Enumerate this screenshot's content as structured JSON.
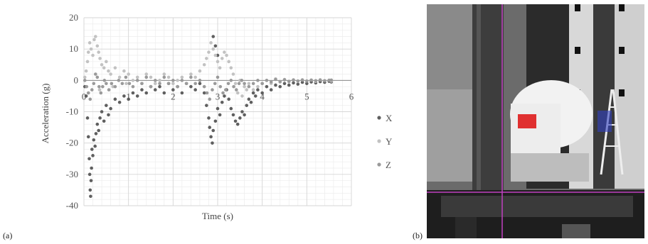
{
  "panels": {
    "a_label": "(a)",
    "b_label": "(b)"
  },
  "chart_data": {
    "type": "scatter",
    "title": "",
    "xlabel": "Time (s)",
    "ylabel": "Acceleration (g)",
    "xlim": [
      0,
      6
    ],
    "ylim": [
      -40,
      20
    ],
    "xticks": [
      0,
      1,
      2,
      3,
      4,
      5,
      6
    ],
    "yticks": [
      -40,
      -30,
      -20,
      -10,
      0,
      10,
      20
    ],
    "grid": true,
    "legend": "right",
    "series": [
      {
        "name": "X",
        "color": "#5f5f5f",
        "points": [
          [
            0.02,
            -2
          ],
          [
            0.05,
            -5
          ],
          [
            0.08,
            -12
          ],
          [
            0.1,
            -18
          ],
          [
            0.12,
            -25
          ],
          [
            0.13,
            -30
          ],
          [
            0.14,
            -35
          ],
          [
            0.15,
            -37
          ],
          [
            0.16,
            -32
          ],
          [
            0.17,
            -28
          ],
          [
            0.18,
            -22
          ],
          [
            0.2,
            -24
          ],
          [
            0.22,
            -19
          ],
          [
            0.25,
            -21
          ],
          [
            0.27,
            -17
          ],
          [
            0.3,
            -14
          ],
          [
            0.33,
            -16
          ],
          [
            0.36,
            -12
          ],
          [
            0.4,
            -10
          ],
          [
            0.45,
            -13
          ],
          [
            0.5,
            -8
          ],
          [
            0.55,
            -11
          ],
          [
            0.6,
            -9
          ],
          [
            0.7,
            -6
          ],
          [
            0.8,
            -7
          ],
          [
            0.9,
            -5
          ],
          [
            1.0,
            -6
          ],
          [
            1.1,
            -4
          ],
          [
            1.2,
            -5
          ],
          [
            1.3,
            -3
          ],
          [
            1.4,
            -4
          ],
          [
            1.5,
            -2
          ],
          [
            1.6,
            -3
          ],
          [
            1.7,
            -2
          ],
          [
            1.8,
            -4
          ],
          [
            1.9,
            -1
          ],
          [
            2.0,
            -3
          ],
          [
            2.1,
            -2
          ],
          [
            2.2,
            -4
          ],
          [
            2.3,
            -1
          ],
          [
            2.4,
            -2
          ],
          [
            2.5,
            -3
          ],
          [
            2.6,
            -1
          ],
          [
            2.7,
            -4
          ],
          [
            2.75,
            -8
          ],
          [
            2.8,
            -12
          ],
          [
            2.82,
            -15
          ],
          [
            2.85,
            -18
          ],
          [
            2.88,
            -20
          ],
          [
            2.9,
            -16
          ],
          [
            2.95,
            -13
          ],
          [
            3.0,
            -9
          ],
          [
            3.05,
            -11
          ],
          [
            3.1,
            -7
          ],
          [
            3.15,
            -5
          ],
          [
            3.2,
            -3
          ],
          [
            3.25,
            -6
          ],
          [
            3.3,
            -9
          ],
          [
            3.35,
            -11
          ],
          [
            3.4,
            -13
          ],
          [
            3.45,
            -14
          ],
          [
            3.5,
            -12
          ],
          [
            3.55,
            -10
          ],
          [
            3.6,
            -11
          ],
          [
            3.65,
            -8
          ],
          [
            3.7,
            -6
          ],
          [
            3.75,
            -7
          ],
          [
            3.8,
            -4
          ],
          [
            3.85,
            -5
          ],
          [
            3.9,
            -3
          ],
          [
            4.0,
            -4
          ],
          [
            4.1,
            -2
          ],
          [
            4.2,
            -3
          ],
          [
            4.3,
            -1.5
          ],
          [
            4.4,
            -2
          ],
          [
            4.5,
            -1
          ],
          [
            4.6,
            -1.5
          ],
          [
            4.7,
            -0.8
          ],
          [
            4.8,
            -1.2
          ],
          [
            4.9,
            -0.6
          ],
          [
            5.0,
            -1
          ],
          [
            5.1,
            -0.5
          ],
          [
            5.2,
            -0.8
          ],
          [
            5.3,
            -0.4
          ],
          [
            5.4,
            -0.6
          ],
          [
            5.5,
            -0.3
          ],
          [
            5.55,
            -0.5
          ],
          [
            2.9,
            14
          ],
          [
            2.95,
            11
          ],
          [
            3.0,
            8
          ]
        ]
      },
      {
        "name": "Y",
        "color": "#c2c2c2",
        "points": [
          [
            0.02,
            1
          ],
          [
            0.05,
            3
          ],
          [
            0.08,
            6
          ],
          [
            0.1,
            9
          ],
          [
            0.13,
            12
          ],
          [
            0.16,
            10
          ],
          [
            0.2,
            8
          ],
          [
            0.23,
            13
          ],
          [
            0.26,
            14
          ],
          [
            0.3,
            11
          ],
          [
            0.33,
            9
          ],
          [
            0.36,
            7
          ],
          [
            0.4,
            5
          ],
          [
            0.45,
            4
          ],
          [
            0.5,
            6
          ],
          [
            0.55,
            3
          ],
          [
            0.6,
            2
          ],
          [
            0.7,
            4
          ],
          [
            0.8,
            1
          ],
          [
            0.9,
            3
          ],
          [
            1.0,
            2
          ],
          [
            1.1,
            0
          ],
          [
            1.2,
            1
          ],
          [
            1.3,
            -1
          ],
          [
            1.4,
            2
          ],
          [
            1.5,
            1
          ],
          [
            1.6,
            -1
          ],
          [
            1.7,
            0
          ],
          [
            1.8,
            2
          ],
          [
            1.9,
            1
          ],
          [
            2.0,
            -1
          ],
          [
            2.1,
            0
          ],
          [
            2.2,
            1
          ],
          [
            2.3,
            -1
          ],
          [
            2.4,
            2
          ],
          [
            2.5,
            1
          ],
          [
            2.6,
            3
          ],
          [
            2.7,
            5
          ],
          [
            2.75,
            7
          ],
          [
            2.8,
            9
          ],
          [
            2.85,
            12
          ],
          [
            2.9,
            10
          ],
          [
            2.95,
            8
          ],
          [
            3.0,
            6
          ],
          [
            3.05,
            4
          ],
          [
            3.1,
            7
          ],
          [
            3.15,
            9
          ],
          [
            3.2,
            8
          ],
          [
            3.25,
            6
          ],
          [
            3.3,
            4
          ],
          [
            3.35,
            2
          ],
          [
            3.4,
            -1
          ],
          [
            3.5,
            0
          ],
          [
            3.6,
            -2
          ],
          [
            3.7,
            -1
          ],
          [
            3.8,
            -3
          ],
          [
            3.9,
            -2
          ],
          [
            4.0,
            -1
          ],
          [
            4.1,
            0
          ],
          [
            4.2,
            -1
          ],
          [
            4.3,
            0.5
          ],
          [
            4.4,
            -0.5
          ],
          [
            4.5,
            0.3
          ],
          [
            4.6,
            -0.4
          ],
          [
            4.7,
            0.2
          ],
          [
            4.8,
            -0.3
          ],
          [
            4.9,
            0.2
          ],
          [
            5.0,
            -0.2
          ],
          [
            5.1,
            0.1
          ],
          [
            5.2,
            -0.3
          ],
          [
            5.3,
            0.2
          ],
          [
            5.4,
            -0.1
          ],
          [
            5.5,
            0.1
          ],
          [
            5.55,
            -0.2
          ],
          [
            3.45,
            -4
          ],
          [
            3.55,
            -5
          ],
          [
            3.65,
            -3
          ],
          [
            0.35,
            -3
          ],
          [
            0.65,
            -2
          ],
          [
            0.95,
            -1
          ]
        ]
      },
      {
        "name": "Z",
        "color": "#9a9a9a",
        "points": [
          [
            0.02,
            0
          ],
          [
            0.06,
            -2
          ],
          [
            0.1,
            -4
          ],
          [
            0.14,
            -6
          ],
          [
            0.18,
            -3
          ],
          [
            0.22,
            -1
          ],
          [
            0.26,
            2
          ],
          [
            0.3,
            1
          ],
          [
            0.34,
            -2
          ],
          [
            0.38,
            -4
          ],
          [
            0.42,
            -2
          ],
          [
            0.46,
            0
          ],
          [
            0.5,
            -1
          ],
          [
            0.56,
            -3
          ],
          [
            0.62,
            -1
          ],
          [
            0.7,
            -2
          ],
          [
            0.78,
            0
          ],
          [
            0.86,
            -1
          ],
          [
            0.94,
            1
          ],
          [
            1.02,
            -1
          ],
          [
            1.1,
            -2
          ],
          [
            1.2,
            0
          ],
          [
            1.3,
            -1
          ],
          [
            1.4,
            1
          ],
          [
            1.5,
            -2
          ],
          [
            1.6,
            0
          ],
          [
            1.7,
            -1
          ],
          [
            1.8,
            1
          ],
          [
            1.9,
            -1
          ],
          [
            2.0,
            0
          ],
          [
            2.1,
            -2
          ],
          [
            2.2,
            0
          ],
          [
            2.3,
            -1
          ],
          [
            2.4,
            1
          ],
          [
            2.5,
            -1
          ],
          [
            2.6,
            0
          ],
          [
            2.7,
            -2
          ],
          [
            2.76,
            -4
          ],
          [
            2.82,
            -6
          ],
          [
            2.88,
            -3
          ],
          [
            2.94,
            -1
          ],
          [
            3.0,
            1
          ],
          [
            3.06,
            -2
          ],
          [
            3.12,
            -4
          ],
          [
            3.18,
            -3
          ],
          [
            3.24,
            -1
          ],
          [
            3.3,
            0
          ],
          [
            3.36,
            -2
          ],
          [
            3.42,
            -3
          ],
          [
            3.48,
            -1
          ],
          [
            3.54,
            0
          ],
          [
            3.6,
            -1
          ],
          [
            3.7,
            -2
          ],
          [
            3.8,
            -1
          ],
          [
            3.9,
            0
          ],
          [
            4.0,
            -1
          ],
          [
            4.1,
            0
          ],
          [
            4.2,
            -0.5
          ],
          [
            4.3,
            0.3
          ],
          [
            4.4,
            -0.4
          ],
          [
            4.5,
            0.2
          ],
          [
            4.6,
            -0.3
          ],
          [
            4.7,
            0.1
          ],
          [
            4.8,
            -0.2
          ],
          [
            4.9,
            0.1
          ],
          [
            5.0,
            -0.2
          ],
          [
            5.1,
            0.1
          ],
          [
            5.2,
            -0.1
          ],
          [
            5.3,
            0.1
          ],
          [
            5.4,
            -0.1
          ],
          [
            5.5,
            0
          ],
          [
            5.55,
            0.1
          ]
        ]
      }
    ]
  }
}
